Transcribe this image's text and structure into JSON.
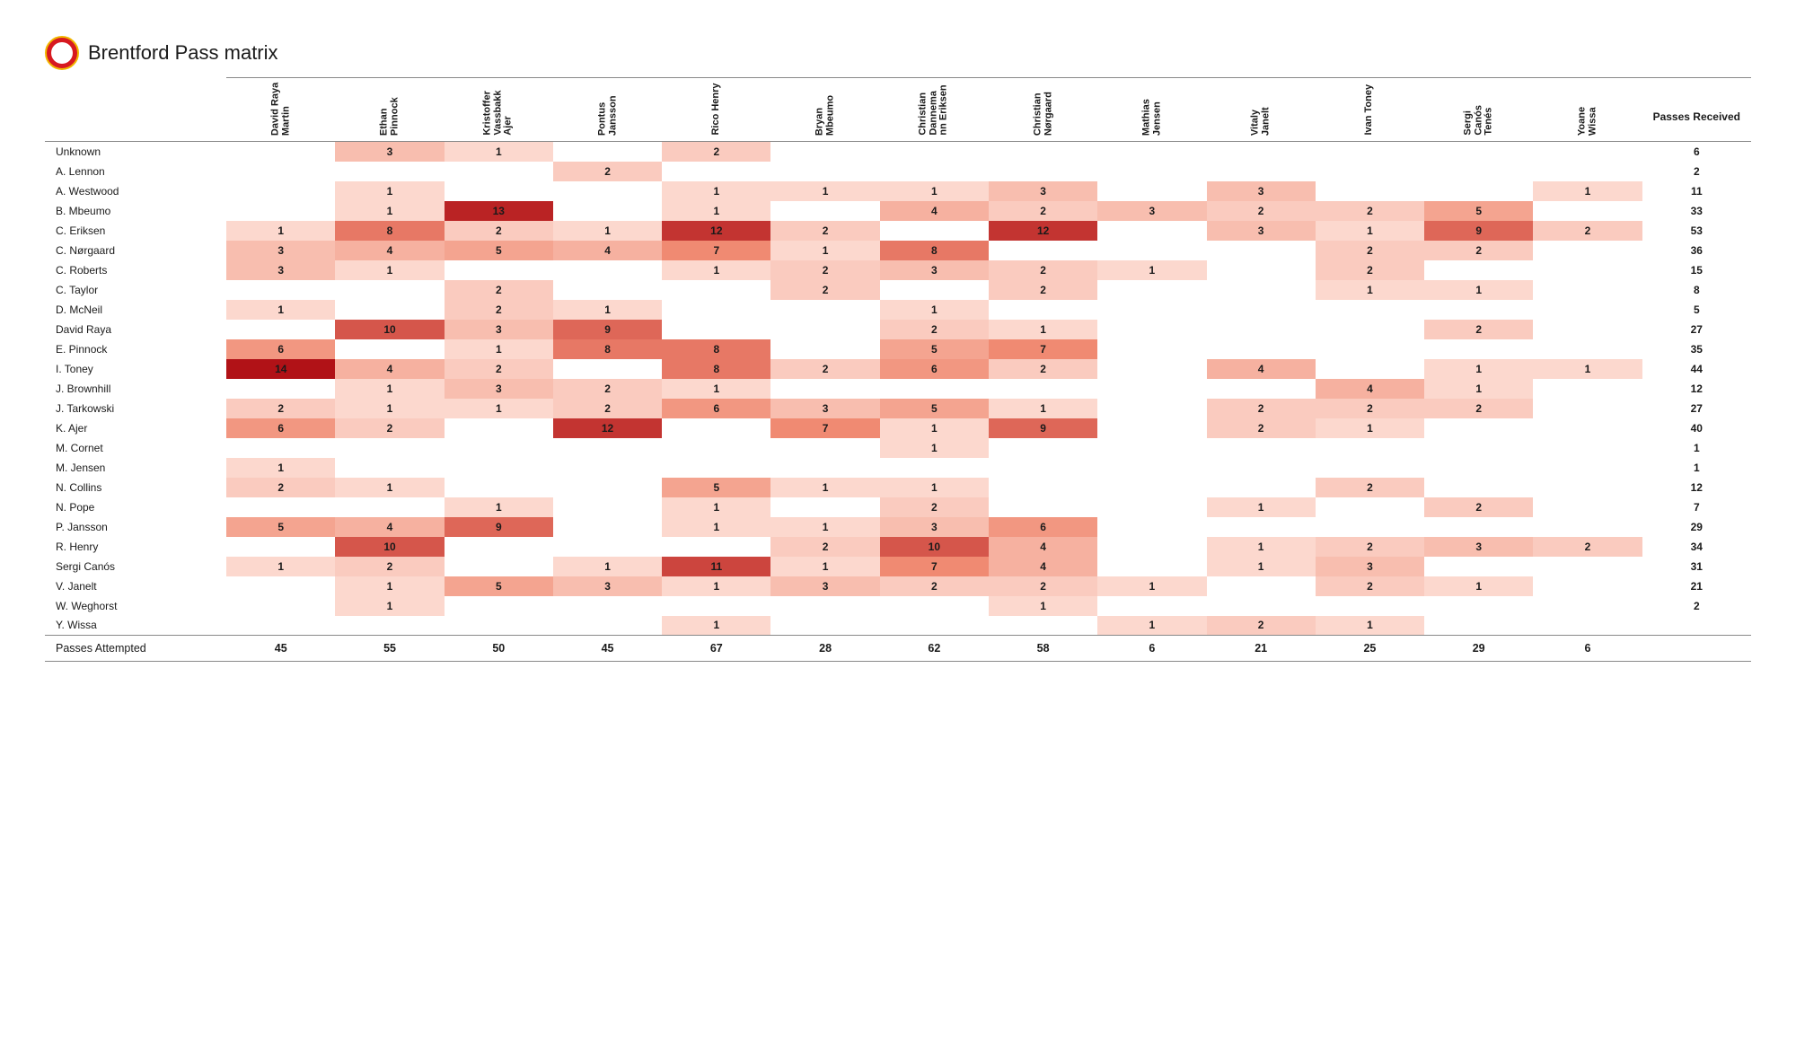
{
  "title": "Brentford Pass matrix",
  "type": "heatmap-table",
  "heat_palette": {
    "min_color": "#ffe6de",
    "mid_color": "#f08a72",
    "max_color": "#b11217",
    "text_light_threshold": 11
  },
  "background_color": "#ffffff",
  "border_color": "#888888",
  "font": {
    "family": "Verdana",
    "header_size": 11,
    "cell_size": 12,
    "title_size": 22
  },
  "columns": [
    "David Raya Martin",
    "Ethan Pinnock",
    "Kristoffer Vassbakk Ajer",
    "Pontus Jansson",
    "Rico Henry",
    "Bryan Mbeumo",
    "Christian Dannema nn Eriksen",
    "Christian Nørgaard",
    "Mathias Jensen",
    "Vitaly Janelt",
    "Ivan Toney",
    "Sergi Canós Tenés",
    "Yoane Wissa"
  ],
  "total_column_label": "Passes Received",
  "footer_label": "Passes Attempted",
  "rows": [
    {
      "label": "Unknown",
      "cells": [
        null,
        3,
        1,
        null,
        2,
        null,
        null,
        null,
        null,
        null,
        null,
        null,
        null
      ],
      "total": 6
    },
    {
      "label": "A. Lennon",
      "cells": [
        null,
        null,
        null,
        2,
        null,
        null,
        null,
        null,
        null,
        null,
        null,
        null,
        null
      ],
      "total": 2
    },
    {
      "label": "A. Westwood",
      "cells": [
        null,
        1,
        null,
        null,
        1,
        1,
        1,
        3,
        null,
        3,
        null,
        null,
        1
      ],
      "total": 11
    },
    {
      "label": "B. Mbeumo",
      "cells": [
        null,
        1,
        13,
        null,
        1,
        null,
        4,
        2,
        3,
        2,
        2,
        5,
        null
      ],
      "total": 33
    },
    {
      "label": "C. Eriksen",
      "cells": [
        1,
        8,
        2,
        1,
        12,
        2,
        null,
        12,
        null,
        3,
        1,
        9,
        2
      ],
      "total": 53
    },
    {
      "label": "C. Nørgaard",
      "cells": [
        3,
        4,
        5,
        4,
        7,
        1,
        8,
        null,
        null,
        null,
        2,
        2,
        null
      ],
      "total": 36
    },
    {
      "label": "C. Roberts",
      "cells": [
        3,
        1,
        null,
        null,
        1,
        2,
        3,
        2,
        1,
        null,
        2,
        null,
        null
      ],
      "total": 15
    },
    {
      "label": "C. Taylor",
      "cells": [
        null,
        null,
        2,
        null,
        null,
        2,
        null,
        2,
        null,
        null,
        1,
        1,
        null
      ],
      "total": 8
    },
    {
      "label": "D. McNeil",
      "cells": [
        1,
        null,
        2,
        1,
        null,
        null,
        1,
        null,
        null,
        null,
        null,
        null,
        null
      ],
      "total": 5
    },
    {
      "label": "David Raya",
      "cells": [
        null,
        10,
        3,
        9,
        null,
        null,
        2,
        1,
        null,
        null,
        null,
        2,
        null
      ],
      "total": 27
    },
    {
      "label": "E. Pinnock",
      "cells": [
        6,
        null,
        1,
        8,
        8,
        null,
        5,
        7,
        null,
        null,
        null,
        null,
        null
      ],
      "total": 35
    },
    {
      "label": "I. Toney",
      "cells": [
        14,
        4,
        2,
        null,
        8,
        2,
        6,
        2,
        null,
        4,
        null,
        1,
        1
      ],
      "total": 44
    },
    {
      "label": "J. Brownhill",
      "cells": [
        null,
        1,
        3,
        2,
        1,
        null,
        null,
        null,
        null,
        null,
        4,
        1,
        null
      ],
      "total": 12
    },
    {
      "label": "J. Tarkowski",
      "cells": [
        2,
        1,
        1,
        2,
        6,
        3,
        5,
        1,
        null,
        2,
        2,
        2,
        null
      ],
      "total": 27
    },
    {
      "label": "K. Ajer",
      "cells": [
        6,
        2,
        null,
        12,
        null,
        7,
        1,
        9,
        null,
        2,
        1,
        null,
        null
      ],
      "total": 40
    },
    {
      "label": "M. Cornet",
      "cells": [
        null,
        null,
        null,
        null,
        null,
        null,
        1,
        null,
        null,
        null,
        null,
        null,
        null
      ],
      "total": 1
    },
    {
      "label": "M. Jensen",
      "cells": [
        1,
        null,
        null,
        null,
        null,
        null,
        null,
        null,
        null,
        null,
        null,
        null,
        null
      ],
      "total": 1
    },
    {
      "label": "N. Collins",
      "cells": [
        2,
        1,
        null,
        null,
        5,
        1,
        1,
        null,
        null,
        null,
        2,
        null,
        null
      ],
      "total": 12
    },
    {
      "label": "N. Pope",
      "cells": [
        null,
        null,
        1,
        null,
        1,
        null,
        2,
        null,
        null,
        1,
        null,
        2,
        null
      ],
      "total": 7
    },
    {
      "label": "P. Jansson",
      "cells": [
        5,
        4,
        9,
        null,
        1,
        1,
        3,
        6,
        null,
        null,
        null,
        null,
        null
      ],
      "total": 29
    },
    {
      "label": "R. Henry",
      "cells": [
        null,
        10,
        null,
        null,
        null,
        2,
        10,
        4,
        null,
        1,
        2,
        3,
        2
      ],
      "total": 34
    },
    {
      "label": "Sergi Canós",
      "cells": [
        1,
        2,
        null,
        1,
        11,
        1,
        7,
        4,
        null,
        1,
        3,
        null,
        null
      ],
      "total": 31
    },
    {
      "label": "V. Janelt",
      "cells": [
        null,
        1,
        5,
        3,
        1,
        3,
        2,
        2,
        1,
        null,
        2,
        1,
        null
      ],
      "total": 21
    },
    {
      "label": "W. Weghorst",
      "cells": [
        null,
        1,
        null,
        null,
        null,
        null,
        null,
        1,
        null,
        null,
        null,
        null,
        null
      ],
      "total": 2
    },
    {
      "label": "Y. Wissa",
      "cells": [
        null,
        null,
        null,
        null,
        1,
        null,
        null,
        null,
        1,
        2,
        1,
        null,
        null
      ],
      "total": ""
    }
  ],
  "column_totals": [
    45,
    55,
    50,
    45,
    67,
    28,
    62,
    58,
    6,
    21,
    25,
    29,
    6
  ]
}
